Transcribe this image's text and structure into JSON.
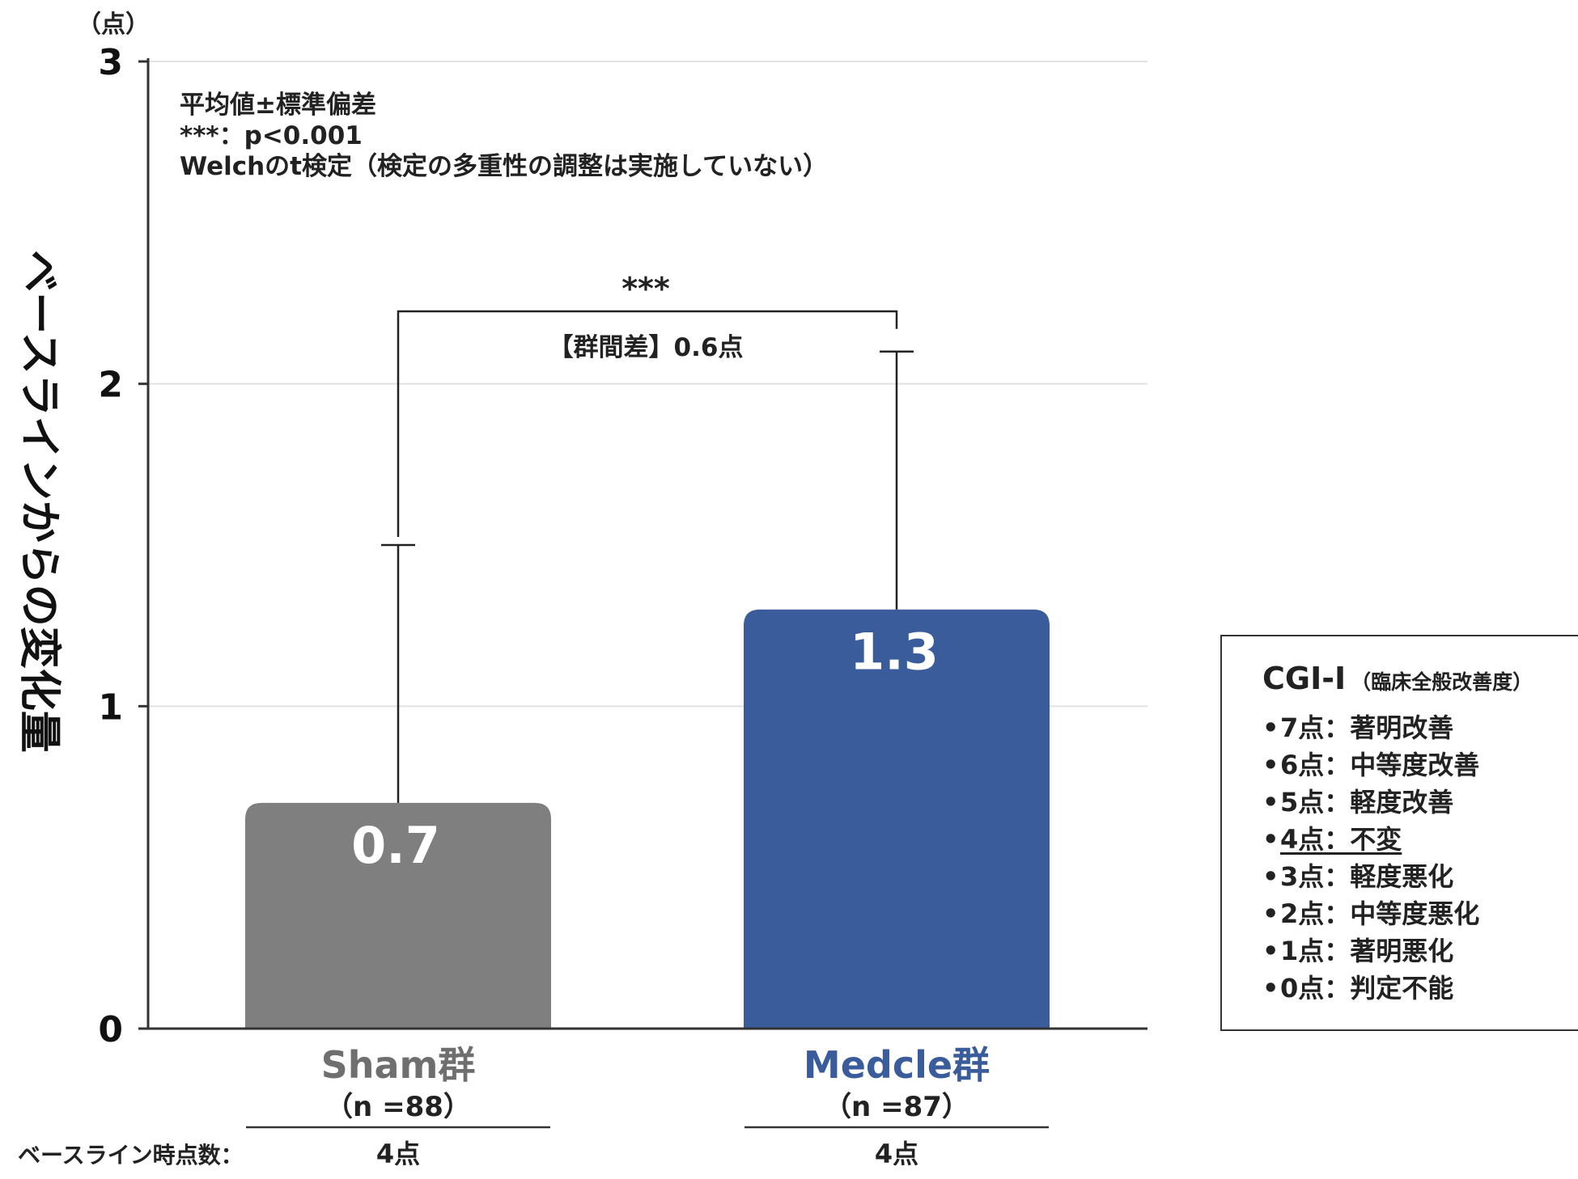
{
  "chart_data": {
    "type": "bar",
    "categories": [
      "Sham群",
      "Medcle群"
    ],
    "category_colors": [
      "#7f7f7f",
      "#3a5c9a"
    ],
    "category_label_colors": [
      "#6f6f6f",
      "#3a5c9a"
    ],
    "group_n": [
      "（n =88）",
      "（n =87）"
    ],
    "values": [
      0.7,
      1.3
    ],
    "value_labels": [
      "0.7",
      "1.3"
    ],
    "error_upper": [
      1.5,
      2.1
    ],
    "y_unit": "（点）",
    "ylabel": "ベースラインからの変化量",
    "ylim": [
      0,
      3
    ],
    "yticks": [
      0,
      1,
      2,
      3
    ],
    "ytick_labels": [
      "0",
      "1",
      "2",
      "3"
    ],
    "grid": true,
    "notes": [
      "平均値±標準偏差",
      "***：p<0.001",
      "Welchのt検定（検定の多重性の調整は実施していない）"
    ],
    "significance": {
      "stars": "***",
      "label": "【群間差】0.6点"
    },
    "baseline_label": "ベースライン時点数：",
    "baseline_values": [
      "4点",
      "4点"
    ]
  },
  "legend": {
    "title": "CGI-I",
    "subtitle": "（臨床全般改善度）",
    "bullet": "•",
    "items": [
      {
        "text": "7点：著明改善",
        "underline": false
      },
      {
        "text": "6点：中等度改善",
        "underline": false
      },
      {
        "text": "5点：軽度改善",
        "underline": false
      },
      {
        "text": "4点：不変",
        "underline": true
      },
      {
        "text": "3点：軽度悪化",
        "underline": false
      },
      {
        "text": "2点：中等度悪化",
        "underline": false
      },
      {
        "text": "1点：著明悪化",
        "underline": false
      },
      {
        "text": "0点：判定不能",
        "underline": false
      }
    ]
  }
}
